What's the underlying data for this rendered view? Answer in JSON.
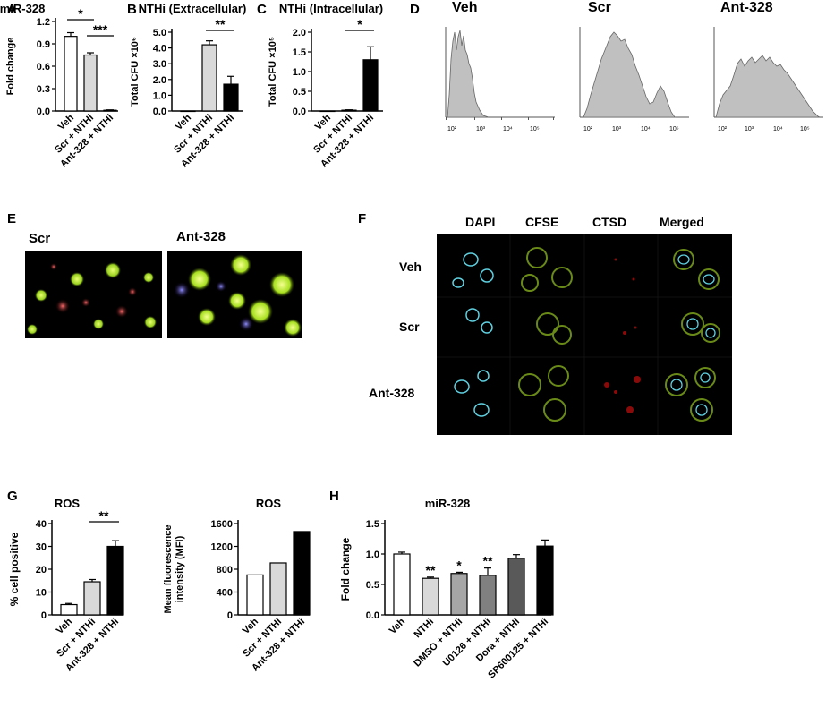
{
  "panels": {
    "A": "A",
    "B": "B",
    "C": "C",
    "D": "D",
    "E": "E",
    "F": "F",
    "G": "G",
    "H": "H"
  },
  "flow": {
    "labels": [
      "Veh",
      "Scr",
      "Ant-328"
    ],
    "xticks": [
      "10²",
      "10³",
      "10⁴",
      "10⁵"
    ]
  },
  "micro_e": {
    "labels": [
      "Scr",
      "Ant-328"
    ]
  },
  "micro_f": {
    "columns": [
      "DAPI",
      "CFSE",
      "CTSD",
      "Merged"
    ],
    "rows": [
      "Veh",
      "Scr",
      "Ant-328"
    ]
  },
  "colors": {
    "white": "#ffffff",
    "light": "#d9d9d9",
    "mid": "#a6a6a6",
    "dark": "#595959",
    "black": "#000000"
  },
  "chart_data": [
    {
      "id": "A",
      "type": "bar",
      "title": "miR-328",
      "ylabel": "Fold change",
      "categories": [
        "Veh",
        "Scr + NTHi",
        "Ant-328 + NTHi"
      ],
      "values": [
        1.0,
        0.75,
        0.01
      ],
      "errors": [
        0.05,
        0.03,
        0.005
      ],
      "ylim": [
        0,
        1.2
      ],
      "yticks": [
        "0.0",
        "0.3",
        "0.6",
        "0.9",
        "1.2"
      ],
      "colors": [
        "#ffffff",
        "#d9d9d9",
        "#000000"
      ],
      "sig": [
        {
          "from": 0,
          "to": 1,
          "label": "*"
        },
        {
          "from": 1,
          "to": 2,
          "label": "***"
        }
      ]
    },
    {
      "id": "B",
      "type": "bar",
      "title": "NTHi (Extracellular)",
      "ylabel": "Total CFU ×10⁶",
      "categories": [
        "Veh",
        "Scr + NTHi",
        "Ant-328 + NTHi"
      ],
      "values": [
        0,
        4.2,
        1.7
      ],
      "errors": [
        0,
        0.25,
        0.5
      ],
      "ylim": [
        0,
        5.0
      ],
      "yticks": [
        "0.0",
        "1.0",
        "2.0",
        "3.0",
        "4.0",
        "5.0"
      ],
      "colors": [
        "#ffffff",
        "#d9d9d9",
        "#000000"
      ],
      "sig": [
        {
          "from": 1,
          "to": 2,
          "label": "**"
        }
      ]
    },
    {
      "id": "C",
      "type": "bar",
      "title": "NTHi (Intracellular)",
      "ylabel": "Total CFU ×10⁵",
      "categories": [
        "Veh",
        "Scr + NTHi",
        "Ant-328 + NTHi"
      ],
      "values": [
        0,
        0.02,
        1.3
      ],
      "errors": [
        0,
        0.01,
        0.33
      ],
      "ylim": [
        0,
        2.0
      ],
      "yticks": [
        "0.0",
        "0.5",
        "1.0",
        "1.5",
        "2.0"
      ],
      "colors": [
        "#ffffff",
        "#d9d9d9",
        "#000000"
      ],
      "sig": [
        {
          "from": 1,
          "to": 2,
          "label": "*"
        }
      ]
    },
    {
      "id": "G1",
      "type": "bar",
      "title": "ROS",
      "ylabel": "% cell positive",
      "categories": [
        "Veh",
        "Scr + NTHi",
        "Ant-328 + NTHi"
      ],
      "values": [
        4.5,
        14.5,
        30
      ],
      "errors": [
        0.5,
        1.0,
        2.5
      ],
      "ylim": [
        0,
        40
      ],
      "yticks": [
        "0",
        "10",
        "20",
        "30",
        "40"
      ],
      "colors": [
        "#ffffff",
        "#d9d9d9",
        "#000000"
      ],
      "sig": [
        {
          "from": 1,
          "to": 2,
          "label": "**"
        }
      ]
    },
    {
      "id": "G2",
      "type": "bar",
      "title": "ROS",
      "ylabel": "Mean fluorescence intensity (MFI)",
      "categories": [
        "Veh",
        "Scr + NTHi",
        "Ant-328 + NTHi"
      ],
      "values": [
        700,
        910,
        1460
      ],
      "errors": [
        0,
        0,
        0
      ],
      "ylim": [
        0,
        1600
      ],
      "yticks": [
        "0",
        "400",
        "800",
        "1200",
        "1600"
      ],
      "colors": [
        "#ffffff",
        "#d9d9d9",
        "#000000"
      ],
      "sig": []
    },
    {
      "id": "H",
      "type": "bar",
      "title": "miR-328",
      "ylabel": "Fold change",
      "categories": [
        "Veh",
        "NTHi",
        "DMSO + NTHi",
        "U0126 + NTHi",
        "Dora + NTHi",
        "SP600125 + NTHi"
      ],
      "values": [
        1.0,
        0.6,
        0.68,
        0.65,
        0.93,
        1.13
      ],
      "errors": [
        0.03,
        0.02,
        0.02,
        0.12,
        0.06,
        0.1
      ],
      "ylim": [
        0,
        1.5
      ],
      "yticks": [
        "0.0",
        "0.5",
        "1.0",
        "1.5"
      ],
      "colors": [
        "#ffffff",
        "#d9d9d9",
        "#a6a6a6",
        "#808080",
        "#595959",
        "#000000"
      ],
      "marks": [
        "",
        "**",
        "*",
        "**",
        "",
        ""
      ],
      "sig": []
    }
  ]
}
